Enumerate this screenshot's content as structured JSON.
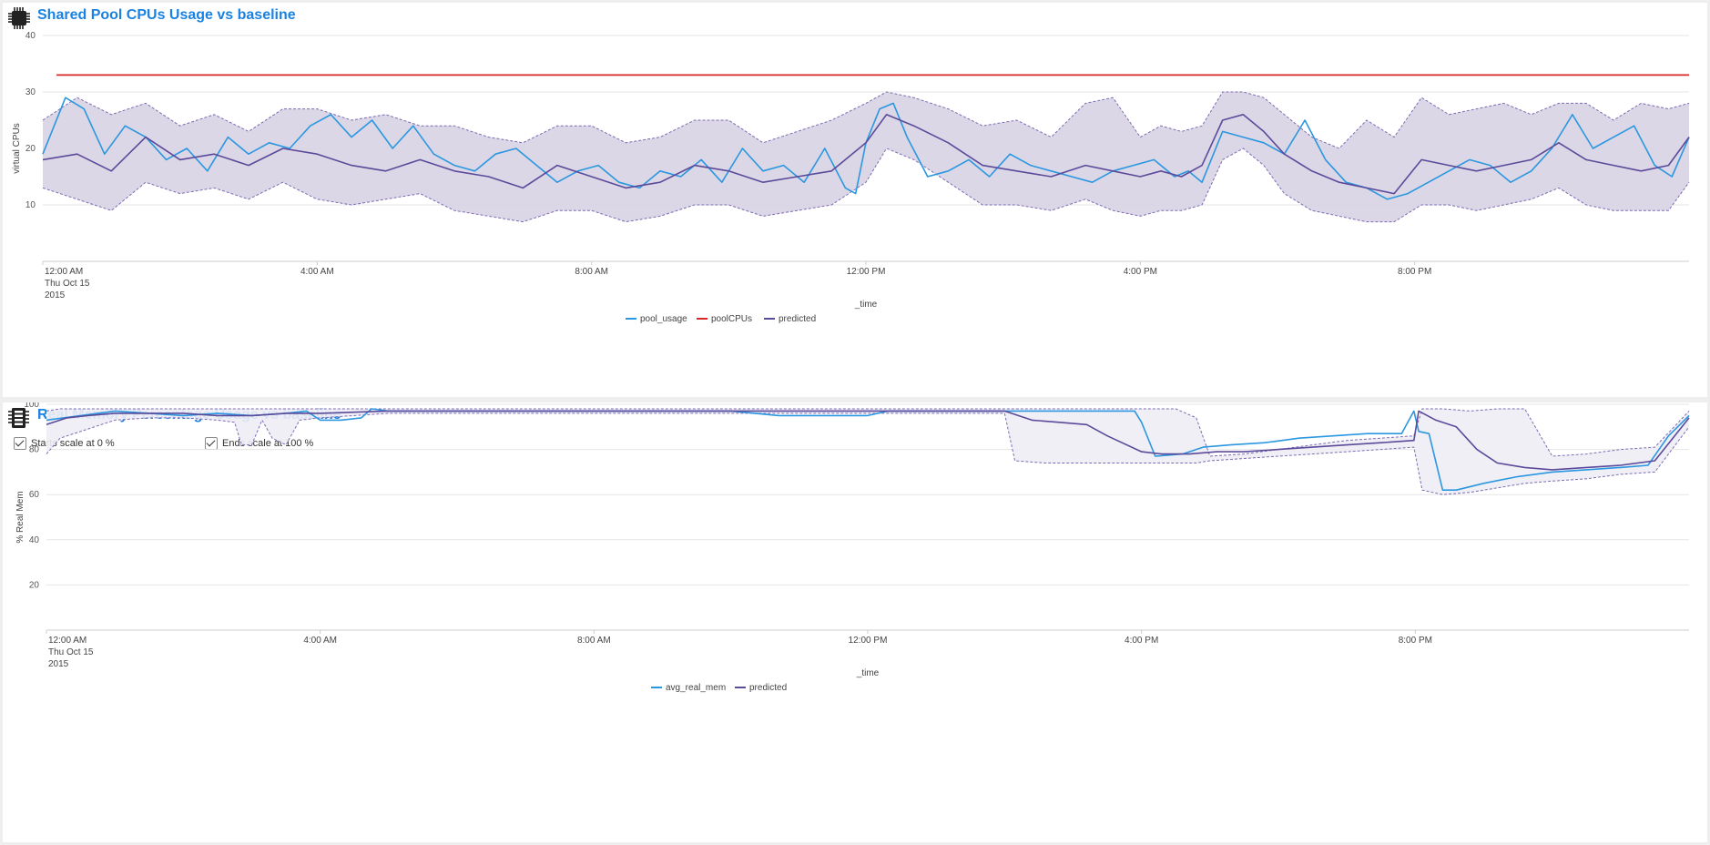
{
  "panels": {
    "cpu": {
      "title": "Shared Pool CPUs Usage vs baseline",
      "icon": "cpu-chip-icon"
    },
    "mem": {
      "title": "Real Memory Percentage Usage vs baseline",
      "icon": "memory-module-icon",
      "options": {
        "starts_at_zero": {
          "label": "Starts scale at 0 %",
          "checked": true
        },
        "ends_at_hundred": {
          "label": "Ends scale at 100 %",
          "checked": true
        }
      }
    }
  },
  "colors": {
    "usage": "#2a97e0",
    "limit": "#d62728",
    "predicted": "#5b4a9a",
    "band_fill": "#d8d3e3",
    "band_edge": "#7b6bb3",
    "accent": "#1a82e2",
    "grid": "#e6e6e6",
    "axis": "#cccccc"
  },
  "chart_data": [
    {
      "id": "cpu",
      "type": "line",
      "title": "Shared Pool CPUs Usage vs baseline",
      "xlabel": "_time",
      "ylabel": "virtual CPUs",
      "x_range_hours": [
        0,
        24
      ],
      "x_ticks": [
        {
          "hour": 0,
          "lines": [
            "12:00 AM",
            "Thu Oct 15",
            "2015"
          ]
        },
        {
          "hour": 4,
          "lines": [
            "4:00 AM"
          ]
        },
        {
          "hour": 8,
          "lines": [
            "8:00 AM"
          ]
        },
        {
          "hour": 12,
          "lines": [
            "12:00 PM"
          ]
        },
        {
          "hour": 16,
          "lines": [
            "4:00 PM"
          ]
        },
        {
          "hour": 20,
          "lines": [
            "8:00 PM"
          ]
        }
      ],
      "ylim": [
        0,
        40
      ],
      "y_ticks": [
        10,
        20,
        30,
        40
      ],
      "legend": [
        "pool_usage",
        "poolCPUs",
        "predicted"
      ],
      "legend_position": "bottom",
      "series": [
        {
          "name": "pool_usage",
          "color_key": "usage",
          "x": [
            0,
            0.33,
            0.6,
            0.9,
            1.2,
            1.5,
            1.8,
            2.1,
            2.4,
            2.7,
            3.0,
            3.3,
            3.6,
            3.9,
            4.2,
            4.5,
            4.8,
            5.1,
            5.4,
            5.7,
            6.0,
            6.3,
            6.6,
            6.9,
            7.2,
            7.5,
            7.8,
            8.1,
            8.4,
            8.7,
            9.0,
            9.3,
            9.6,
            9.9,
            10.2,
            10.5,
            10.8,
            11.1,
            11.4,
            11.7,
            11.85,
            12.0,
            12.2,
            12.4,
            12.6,
            12.9,
            13.2,
            13.5,
            13.8,
            14.1,
            14.4,
            14.7,
            15.0,
            15.3,
            15.6,
            15.9,
            16.2,
            16.5,
            16.7,
            16.9,
            17.2,
            17.5,
            17.8,
            18.1,
            18.4,
            18.7,
            19.0,
            19.3,
            19.6,
            19.9,
            20.2,
            20.5,
            20.8,
            21.1,
            21.4,
            21.7,
            22.0,
            22.3,
            22.6,
            22.9,
            23.2,
            23.5,
            23.75,
            24.0
          ],
          "y": [
            19,
            29,
            27,
            19,
            24,
            22,
            18,
            20,
            16,
            22,
            19,
            21,
            20,
            24,
            26,
            22,
            25,
            20,
            24,
            19,
            17,
            16,
            19,
            20,
            17,
            14,
            16,
            17,
            14,
            13,
            16,
            15,
            18,
            14,
            20,
            16,
            17,
            14,
            20,
            13,
            12,
            21,
            27,
            28,
            22,
            15,
            16,
            18,
            15,
            19,
            17,
            16,
            15,
            14,
            16,
            17,
            18,
            15,
            16,
            14,
            23,
            22,
            21,
            19,
            25,
            18,
            14,
            13,
            11,
            12,
            14,
            16,
            18,
            17,
            14,
            16,
            20,
            26,
            20,
            22,
            24,
            17,
            15,
            22
          ]
        },
        {
          "name": "poolCPUs",
          "color_key": "limit",
          "x": [
            0.2,
            24
          ],
          "y": [
            33,
            33
          ]
        },
        {
          "name": "predicted",
          "color_key": "predicted",
          "x": [
            0,
            0.5,
            1.0,
            1.5,
            2.0,
            2.5,
            3.0,
            3.5,
            4.0,
            4.5,
            5.0,
            5.5,
            6.0,
            6.5,
            7.0,
            7.5,
            8.0,
            8.5,
            9.0,
            9.5,
            10.0,
            10.5,
            11.0,
            11.5,
            12.0,
            12.3,
            12.7,
            13.2,
            13.7,
            14.2,
            14.7,
            15.2,
            15.6,
            16.0,
            16.3,
            16.6,
            16.9,
            17.2,
            17.5,
            17.8,
            18.1,
            18.5,
            18.9,
            19.3,
            19.7,
            20.1,
            20.5,
            20.9,
            21.3,
            21.7,
            22.1,
            22.5,
            22.9,
            23.3,
            23.7,
            24.0
          ],
          "y": [
            18,
            19,
            16,
            22,
            18,
            19,
            17,
            20,
            19,
            17,
            16,
            18,
            16,
            15,
            13,
            17,
            15,
            13,
            14,
            17,
            16,
            14,
            15,
            16,
            21,
            26,
            24,
            21,
            17,
            16,
            15,
            17,
            16,
            15,
            16,
            15,
            17,
            25,
            26,
            23,
            19,
            16,
            14,
            13,
            12,
            18,
            17,
            16,
            17,
            18,
            21,
            18,
            17,
            16,
            17,
            22
          ]
        }
      ],
      "band": {
        "name": "predicted range",
        "x": [
          0,
          0.5,
          1.0,
          1.5,
          2.0,
          2.5,
          3.0,
          3.5,
          4.0,
          4.5,
          5.0,
          5.5,
          6.0,
          6.5,
          7.0,
          7.5,
          8.0,
          8.5,
          9.0,
          9.5,
          10.0,
          10.5,
          11.0,
          11.5,
          12.0,
          12.3,
          12.7,
          13.2,
          13.7,
          14.2,
          14.7,
          15.2,
          15.6,
          16.0,
          16.3,
          16.6,
          16.9,
          17.2,
          17.5,
          17.8,
          18.1,
          18.5,
          18.9,
          19.3,
          19.7,
          20.1,
          20.5,
          20.9,
          21.3,
          21.7,
          22.1,
          22.5,
          22.9,
          23.3,
          23.7,
          24.0
        ],
        "upper": [
          25,
          29,
          26,
          28,
          24,
          26,
          23,
          27,
          27,
          25,
          26,
          24,
          24,
          22,
          21,
          24,
          24,
          21,
          22,
          25,
          25,
          21,
          23,
          25,
          28,
          30,
          29,
          27,
          24,
          25,
          22,
          28,
          29,
          22,
          24,
          23,
          24,
          30,
          30,
          29,
          26,
          22,
          20,
          25,
          22,
          29,
          26,
          27,
          28,
          26,
          28,
          28,
          25,
          28,
          27,
          28
        ],
        "lower": [
          13,
          11,
          9,
          14,
          12,
          13,
          11,
          14,
          11,
          10,
          11,
          12,
          9,
          8,
          7,
          9,
          9,
          7,
          8,
          10,
          10,
          8,
          9,
          10,
          14,
          20,
          18,
          14,
          10,
          10,
          9,
          11,
          9,
          8,
          9,
          9,
          10,
          18,
          20,
          17,
          12,
          9,
          8,
          7,
          7,
          10,
          10,
          9,
          10,
          11,
          13,
          10,
          9,
          9,
          9,
          14
        ]
      }
    },
    {
      "id": "mem",
      "type": "line",
      "title": "Real Memory Percentage Usage vs baseline",
      "xlabel": "_time",
      "ylabel": "% Real Mem",
      "x_range_hours": [
        0,
        24
      ],
      "x_ticks": [
        {
          "hour": 0,
          "lines": [
            "12:00 AM",
            "Thu Oct 15",
            "2015"
          ]
        },
        {
          "hour": 4,
          "lines": [
            "4:00 AM"
          ]
        },
        {
          "hour": 8,
          "lines": [
            "8:00 AM"
          ]
        },
        {
          "hour": 12,
          "lines": [
            "12:00 PM"
          ]
        },
        {
          "hour": 16,
          "lines": [
            "4:00 PM"
          ]
        },
        {
          "hour": 20,
          "lines": [
            "8:00 PM"
          ]
        }
      ],
      "ylim": [
        0,
        100
      ],
      "y_ticks": [
        20,
        40,
        60,
        80,
        100
      ],
      "legend": [
        "avg_real_mem",
        "predicted"
      ],
      "legend_position": "bottom",
      "series": [
        {
          "name": "avg_real_mem",
          "color_key": "usage",
          "x": [
            0,
            0.5,
            1.0,
            1.5,
            2.0,
            2.5,
            3.0,
            3.5,
            3.8,
            4.0,
            4.3,
            4.6,
            4.75,
            5.0,
            6.0,
            7.0,
            8.0,
            9.0,
            10.0,
            10.7,
            11.0,
            11.5,
            12.0,
            12.3,
            13.0,
            14.0,
            15.0,
            15.9,
            16.0,
            16.2,
            16.6,
            16.9,
            17.3,
            17.8,
            18.3,
            18.8,
            19.3,
            19.8,
            19.98,
            20.05,
            20.2,
            20.4,
            20.6,
            21.0,
            21.5,
            22.0,
            22.5,
            23.0,
            23.4,
            23.7,
            24.0
          ],
          "y": [
            93,
            95,
            97,
            96,
            95,
            96,
            95,
            96,
            97,
            93,
            93,
            94,
            98,
            97,
            97,
            97,
            97,
            97,
            97,
            95,
            95,
            95,
            95,
            97,
            97,
            97,
            97,
            97,
            92,
            77,
            78,
            81,
            82,
            83,
            85,
            86,
            87,
            87,
            97,
            88,
            87,
            62,
            62,
            65,
            68,
            70,
            71,
            72,
            73,
            86,
            95
          ]
        },
        {
          "name": "predicted",
          "color_key": "predicted",
          "x": [
            0,
            0.3,
            0.6,
            1.0,
            1.5,
            2.0,
            2.5,
            3.0,
            3.5,
            3.8,
            4.0,
            5.0,
            6.0,
            7.0,
            8.0,
            9.0,
            10.0,
            11.0,
            12.0,
            13.0,
            14.0,
            14.4,
            14.8,
            15.2,
            15.5,
            16.0,
            16.3,
            16.7,
            17.1,
            17.5,
            18.0,
            18.5,
            19.0,
            19.5,
            19.98,
            20.05,
            20.3,
            20.6,
            20.9,
            21.2,
            21.6,
            22.0,
            22.5,
            23.0,
            23.5,
            24.0
          ],
          "y": [
            91,
            94,
            95,
            96,
            96,
            96,
            95,
            95,
            96,
            96,
            96,
            97,
            97,
            97,
            97,
            97,
            97,
            97,
            97,
            97,
            97,
            93,
            92,
            91,
            86,
            79,
            78,
            78,
            79,
            79,
            80,
            81,
            82,
            83,
            84,
            97,
            93,
            90,
            80,
            74,
            72,
            71,
            72,
            73,
            75,
            94
          ]
        }
      ],
      "band": {
        "name": "predicted range",
        "x": [
          0,
          0.2,
          0.5,
          1.0,
          1.5,
          2.0,
          2.5,
          2.75,
          2.85,
          3.0,
          3.15,
          3.3,
          3.5,
          3.7,
          4.0,
          5.0,
          6.0,
          7.0,
          8.0,
          9.0,
          10.0,
          11.0,
          12.0,
          13.0,
          14.0,
          14.15,
          14.6,
          15.0,
          15.5,
          16.0,
          16.5,
          16.8,
          17.0,
          17.5,
          18.0,
          18.5,
          19.0,
          19.5,
          19.98,
          20.1,
          20.4,
          20.8,
          21.2,
          21.6,
          22.0,
          22.5,
          23.0,
          23.5,
          24.0
        ],
        "upper": [
          97,
          98,
          98,
          98,
          98,
          98,
          98,
          98,
          98,
          98,
          98,
          98,
          98,
          98,
          98,
          98,
          98,
          98,
          98,
          98,
          98,
          98,
          98,
          98,
          98,
          98,
          98,
          98,
          98,
          98,
          98,
          94,
          77,
          78,
          80,
          82,
          84,
          85,
          86,
          98,
          98,
          97,
          98,
          98,
          77,
          78,
          80,
          81,
          97
        ],
        "lower": [
          78,
          85,
          88,
          93,
          94,
          94,
          93,
          92,
          82,
          82,
          93,
          85,
          82,
          93,
          94,
          96,
          96,
          96,
          96,
          96,
          96,
          96,
          96,
          96,
          96,
          75,
          74,
          74,
          74,
          74,
          74,
          74,
          75,
          76,
          77,
          78,
          79,
          80,
          81,
          62,
          60,
          61,
          63,
          65,
          66,
          67,
          69,
          70,
          90
        ]
      }
    }
  ]
}
